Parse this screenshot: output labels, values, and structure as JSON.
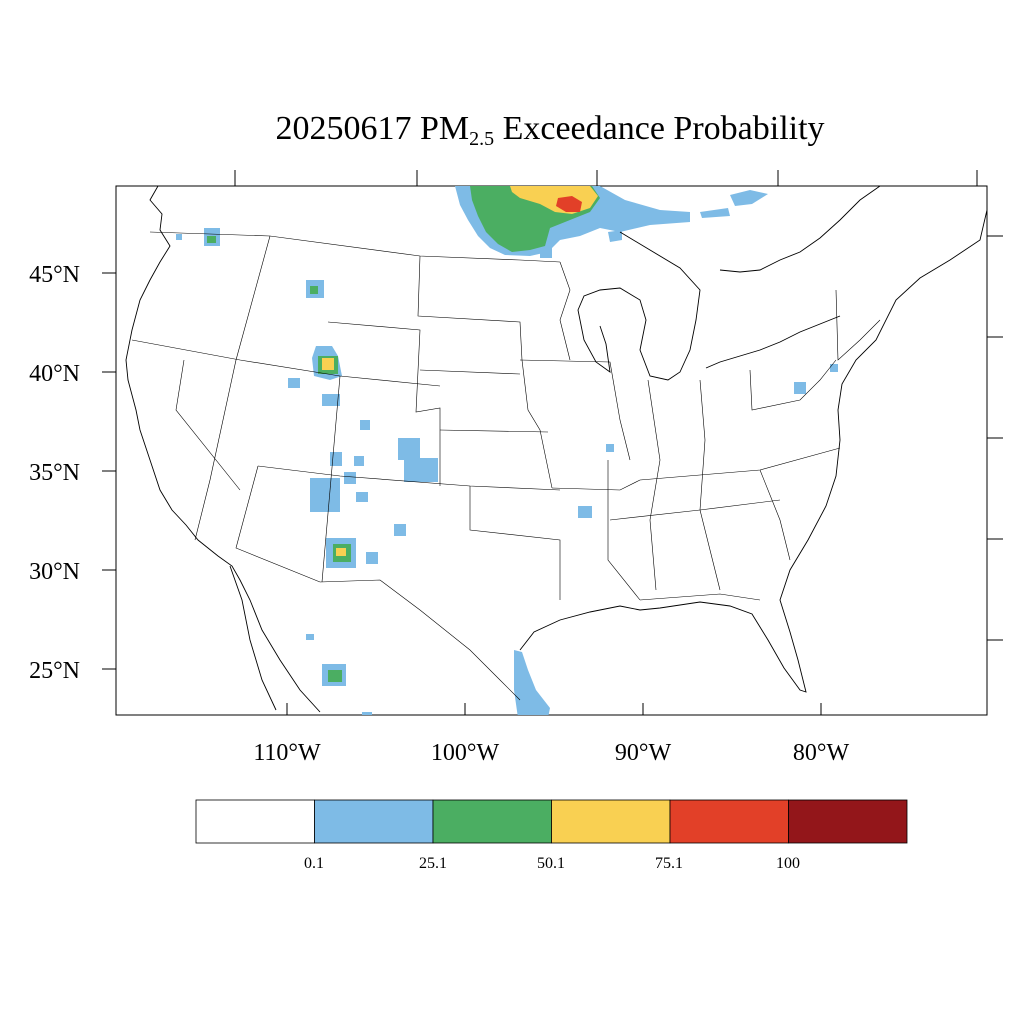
{
  "title": {
    "prefix": "20250617 PM",
    "subscript": "2.5",
    "suffix": " Exceedance Probability"
  },
  "map": {
    "lat_labels": [
      "45°N",
      "40°N",
      "35°N",
      "30°N",
      "25°N"
    ],
    "lon_labels": [
      "110°W",
      "100°W",
      "90°W",
      "80°W"
    ],
    "legend": {
      "colors": [
        "#ffffff",
        "#7ebbe6",
        "#4bae62",
        "#f9d052",
        "#e24028",
        "#93161a"
      ],
      "labels": [
        "0.1",
        "25.1",
        "50.1",
        "75.1",
        "100"
      ]
    },
    "categories": {
      "blue": "#7ebbe6",
      "green": "#4bae62",
      "yellow": "#f9d052",
      "red": "#e24028"
    }
  }
}
